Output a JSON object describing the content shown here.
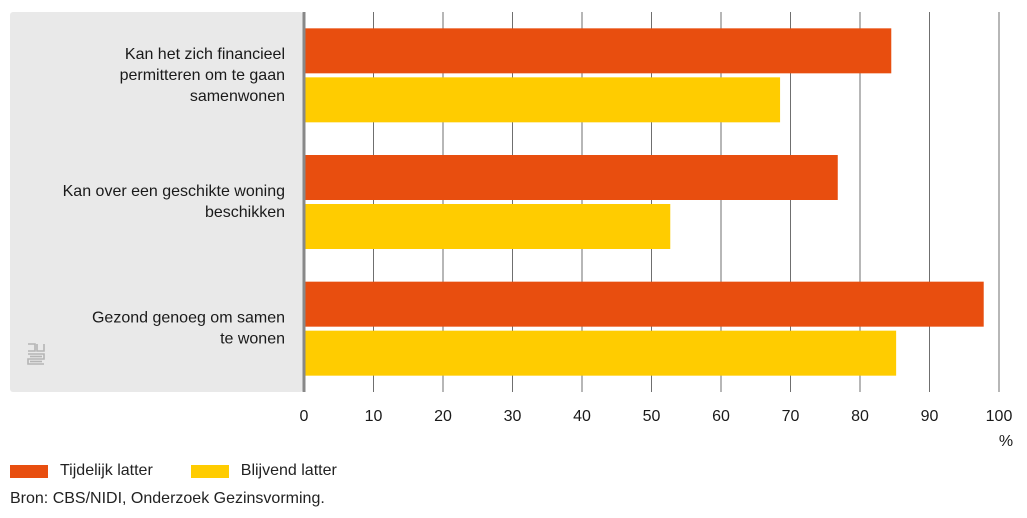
{
  "chart_data": {
    "type": "bar",
    "orientation": "horizontal",
    "categories": [
      [
        "Kan het zich financieel",
        "permitteren om te gaan",
        "samenwonen"
      ],
      [
        "Kan over een geschikte woning",
        "beschikken"
      ],
      [
        "Gezond genoeg om samen",
        "te wonen"
      ]
    ],
    "series": [
      {
        "name": "Tijdelijk latter",
        "color": "#e84e0f",
        "values": [
          84.5,
          76.8,
          97.8
        ]
      },
      {
        "name": "Blijvend latter",
        "color": "#ffcc00",
        "values": [
          68.5,
          52.7,
          85.2
        ]
      }
    ],
    "xlim": [
      0,
      100
    ],
    "xticks": [
      0,
      10,
      20,
      30,
      40,
      50,
      60,
      70,
      80,
      90,
      100
    ],
    "xunit": "%",
    "grid": true,
    "legend_position": "bottom-left"
  },
  "source": "Bron: CBS/NIDI, Onderzoek Gezinsvorming.",
  "logo": {
    "icon": "cbs-logo-icon",
    "color": "#b5b5b5"
  }
}
